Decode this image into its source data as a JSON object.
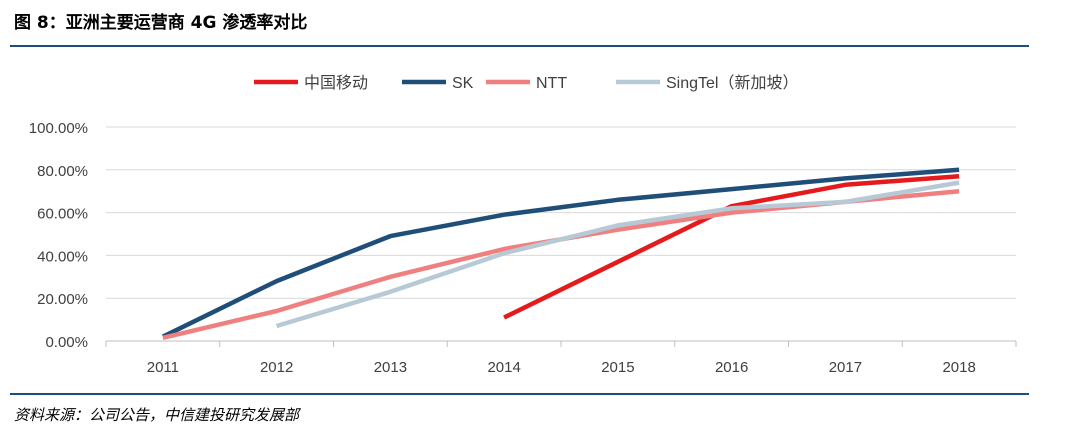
{
  "figure": {
    "title": "图 8：亚洲主要运营商 4G 渗透率对比",
    "source": "资料来源：公司公告，中信建投研究发展部"
  },
  "chart_data": {
    "type": "line",
    "title": "",
    "xlabel": "",
    "ylabel": "",
    "categories": [
      "2011",
      "2012",
      "2013",
      "2014",
      "2015",
      "2016",
      "2017",
      "2018"
    ],
    "y_ticks": [
      "0.00%",
      "20.00%",
      "40.00%",
      "60.00%",
      "80.00%",
      "100.00%"
    ],
    "ylim": [
      0,
      100
    ],
    "grid": true,
    "legend_position": "top",
    "series": [
      {
        "name": "中国移动",
        "color": "#e41a1c",
        "values": [
          null,
          null,
          null,
          11,
          37,
          63,
          73,
          77
        ]
      },
      {
        "name": "SK",
        "color": "#1f4e79",
        "values": [
          2,
          28,
          49,
          59,
          66,
          71,
          76,
          80
        ]
      },
      {
        "name": "NTT",
        "color": "#f08080",
        "values": [
          1.5,
          14,
          30,
          43,
          52,
          60,
          65,
          70
        ]
      },
      {
        "name": "SingTel（新加坡）",
        "color": "#b8c9d6",
        "values": [
          null,
          7,
          23,
          41,
          54,
          62,
          65,
          74
        ]
      }
    ]
  }
}
